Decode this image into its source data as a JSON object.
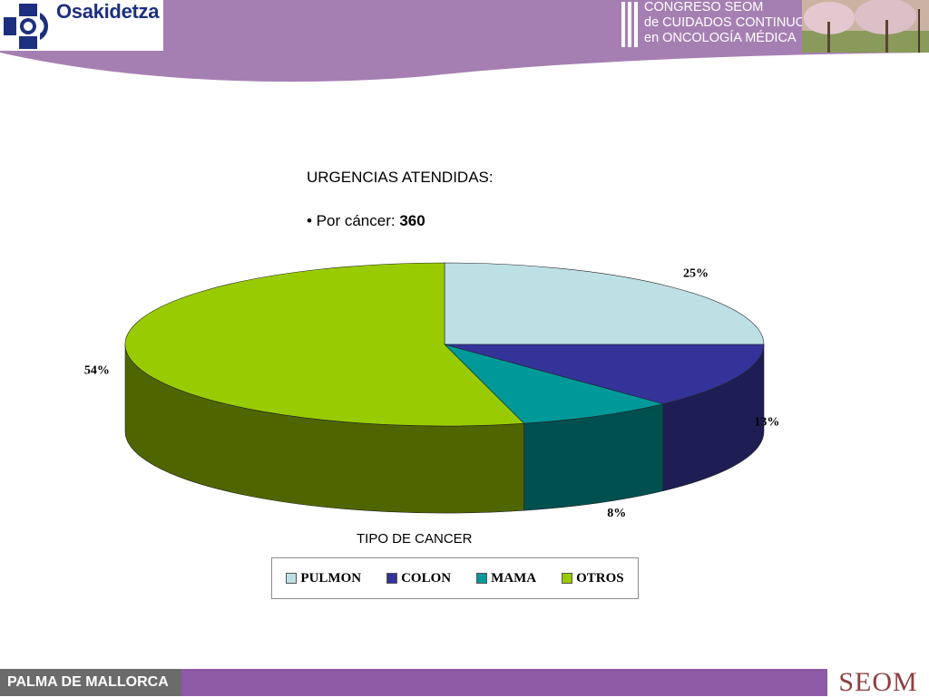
{
  "header": {
    "logo_text": "Osakidetza",
    "congress_lines": [
      "CONGRESO SEOM",
      "de CUIDADOS CONTINUOS",
      "en ONCOLOGÍA MÉDICA"
    ]
  },
  "title": {
    "line1": "URGENCIAS ATENDIDAS:",
    "bullet_prefix": "• Por cáncer: ",
    "bullet_value": "360"
  },
  "chart_data": {
    "type": "pie",
    "title": "TIPO DE CANCER",
    "categories": [
      "PULMON",
      "COLON",
      "MAMA",
      "OTROS"
    ],
    "values": [
      25,
      13,
      8,
      54
    ],
    "labels": [
      "25%",
      "13%",
      "8%",
      "54%"
    ],
    "colors": [
      "#bde0e5",
      "#333399",
      "#009999",
      "#99cc00"
    ],
    "side_colors": [
      "#8fb3b8",
      "#1e1e55",
      "#005050",
      "#4f6600"
    ],
    "legend_position": "bottom"
  },
  "footer": {
    "city": "PALMA DE MALLORCA",
    "logo": "SEOM"
  }
}
